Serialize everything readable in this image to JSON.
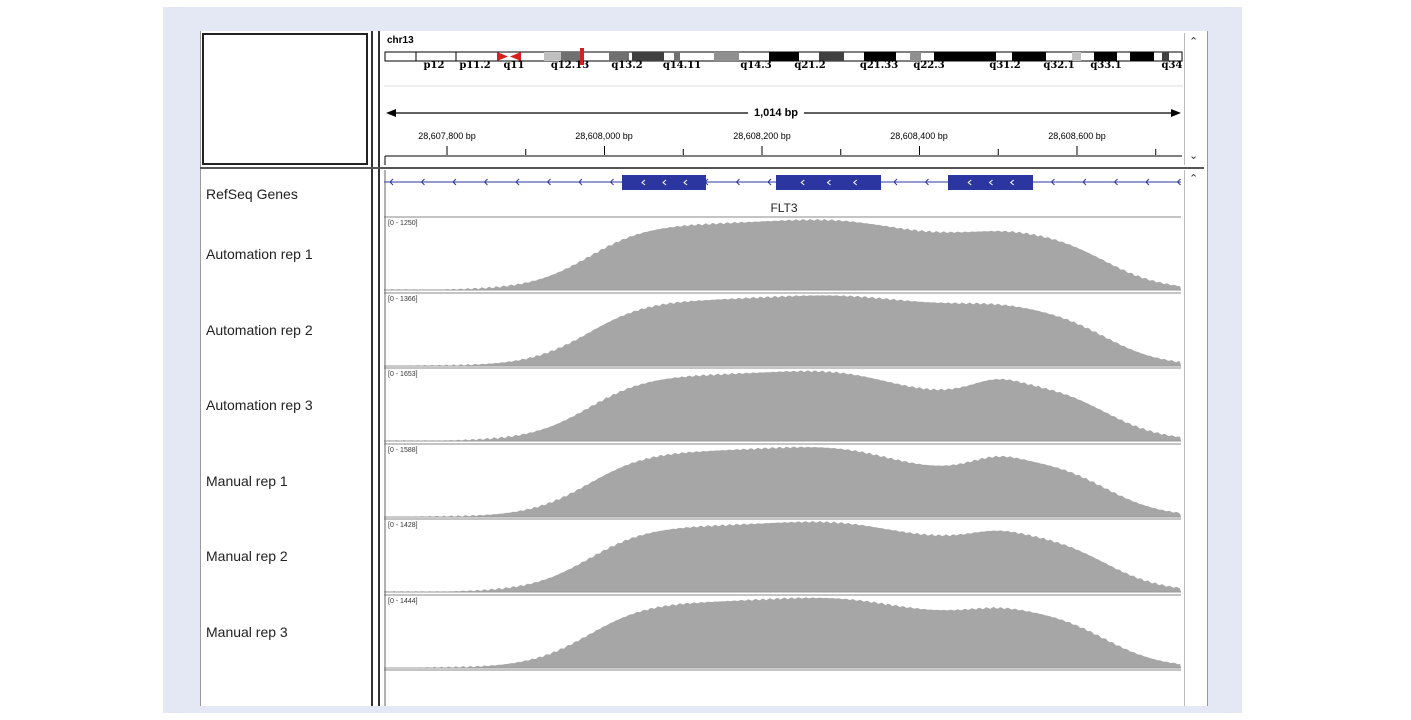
{
  "header": {
    "chromosome": "chr13",
    "bands": [
      {
        "label": "p12",
        "pos": 50
      },
      {
        "label": "p11.2",
        "pos": 91
      },
      {
        "label": "q11",
        "pos": 130
      },
      {
        "label": "q12.13",
        "pos": 186
      },
      {
        "label": "q13.2",
        "pos": 243
      },
      {
        "label": "q14.11",
        "pos": 298
      },
      {
        "label": "q14.3",
        "pos": 372
      },
      {
        "label": "q21.2",
        "pos": 426
      },
      {
        "label": "q21.33",
        "pos": 495
      },
      {
        "label": "q22.3",
        "pos": 545
      },
      {
        "label": "q31.2",
        "pos": 621
      },
      {
        "label": "q32.1",
        "pos": 675
      },
      {
        "label": "q33.1",
        "pos": 722
      },
      {
        "label": "q34",
        "pos": 788
      }
    ],
    "span_label": "1,014 bp",
    "ticks": [
      {
        "label": "28,607,800 bp",
        "pos": 63
      },
      {
        "label": "28,608,000 bp",
        "pos": 220
      },
      {
        "label": "28,608,200 bp",
        "pos": 378
      },
      {
        "label": "28,608,400 bp",
        "pos": 535
      },
      {
        "label": "28,608,600 bp",
        "pos": 693
      }
    ]
  },
  "tracks": {
    "gene_track_name": "RefSeq Genes",
    "gene_name": "FLT3",
    "coverage": [
      {
        "name": "Automation rep 1",
        "range": "[0 - 1250]"
      },
      {
        "name": "Automation rep 2",
        "range": "[0 - 1366]"
      },
      {
        "name": "Automation rep 3",
        "range": "[0 - 1653]"
      },
      {
        "name": "Manual rep 1",
        "range": "[0 - 1588]"
      },
      {
        "name": "Manual rep 2",
        "range": "[0 - 1428]"
      },
      {
        "name": "Manual rep 3",
        "range": "[0 - 1444]"
      }
    ]
  },
  "icons": {
    "scroll_up": "chevron-up-icon",
    "scroll_down": "chevron-down-icon"
  },
  "colors": {
    "coverage": "#a6a6a6",
    "gene": "#2b36a0",
    "centromere": "#d62020"
  }
}
